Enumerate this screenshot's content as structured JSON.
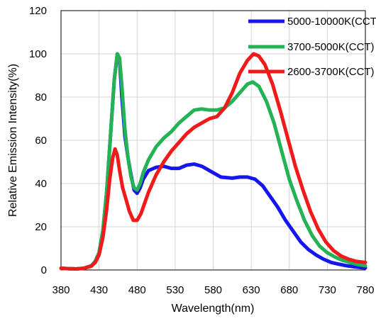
{
  "chart_data": {
    "type": "line",
    "title": "",
    "xlabel": "Wavelength(nm)",
    "ylabel": "Relative Emission Intensity(%)",
    "xlim": [
      380,
      780
    ],
    "ylim": [
      0,
      120
    ],
    "x_ticks": [
      380,
      430,
      480,
      530,
      580,
      630,
      680,
      730,
      780
    ],
    "y_ticks": [
      0,
      20,
      40,
      60,
      80,
      100,
      120
    ],
    "grid": true,
    "legend_position": "top-right",
    "colors": {
      "grid": "#d3d3d3",
      "axis": "#000000",
      "background": "#ffffff"
    },
    "series": [
      {
        "name": "5000-10000K(CCT)",
        "color": "#1515f0",
        "points": [
          [
            380,
            0.8
          ],
          [
            390,
            0.6
          ],
          [
            400,
            0.5
          ],
          [
            410,
            0.8
          ],
          [
            420,
            2
          ],
          [
            425,
            4
          ],
          [
            430,
            8
          ],
          [
            435,
            18
          ],
          [
            440,
            36
          ],
          [
            445,
            62
          ],
          [
            450,
            88
          ],
          [
            454,
            100
          ],
          [
            457,
            97
          ],
          [
            460,
            80
          ],
          [
            464,
            62
          ],
          [
            468,
            52
          ],
          [
            472,
            44
          ],
          [
            476,
            37
          ],
          [
            480,
            35.5
          ],
          [
            484,
            38
          ],
          [
            488,
            42
          ],
          [
            495,
            46
          ],
          [
            505,
            47.5
          ],
          [
            515,
            48
          ],
          [
            525,
            47
          ],
          [
            535,
            47
          ],
          [
            545,
            48.5
          ],
          [
            555,
            49
          ],
          [
            565,
            48
          ],
          [
            575,
            46
          ],
          [
            590,
            43
          ],
          [
            605,
            42.5
          ],
          [
            615,
            43
          ],
          [
            625,
            43
          ],
          [
            635,
            42
          ],
          [
            645,
            39
          ],
          [
            655,
            34
          ],
          [
            665,
            29
          ],
          [
            675,
            23
          ],
          [
            685,
            18
          ],
          [
            695,
            13
          ],
          [
            705,
            9.5
          ],
          [
            715,
            7
          ],
          [
            725,
            5
          ],
          [
            735,
            3.5
          ],
          [
            745,
            2.7
          ],
          [
            755,
            2
          ],
          [
            765,
            1.5
          ],
          [
            775,
            1.1
          ],
          [
            780,
            1
          ]
        ]
      },
      {
        "name": "3700-5000K(CCT)",
        "color": "#23b354",
        "points": [
          [
            380,
            0.8
          ],
          [
            390,
            0.6
          ],
          [
            400,
            0.5
          ],
          [
            410,
            0.8
          ],
          [
            420,
            2
          ],
          [
            425,
            4
          ],
          [
            430,
            8
          ],
          [
            435,
            18
          ],
          [
            440,
            36
          ],
          [
            445,
            62
          ],
          [
            450,
            88
          ],
          [
            454,
            100
          ],
          [
            457,
            98
          ],
          [
            460,
            85
          ],
          [
            464,
            65
          ],
          [
            468,
            52
          ],
          [
            472,
            43
          ],
          [
            476,
            38
          ],
          [
            480,
            37
          ],
          [
            484,
            40
          ],
          [
            488,
            45
          ],
          [
            495,
            51
          ],
          [
            505,
            57
          ],
          [
            515,
            61
          ],
          [
            525,
            64
          ],
          [
            535,
            68
          ],
          [
            545,
            71
          ],
          [
            555,
            74
          ],
          [
            565,
            74.5
          ],
          [
            575,
            74
          ],
          [
            585,
            74
          ],
          [
            595,
            75
          ],
          [
            605,
            78
          ],
          [
            615,
            82
          ],
          [
            625,
            86
          ],
          [
            632,
            87
          ],
          [
            640,
            85
          ],
          [
            650,
            78
          ],
          [
            660,
            68
          ],
          [
            670,
            55
          ],
          [
            680,
            42
          ],
          [
            690,
            32
          ],
          [
            700,
            23
          ],
          [
            710,
            16
          ],
          [
            720,
            11
          ],
          [
            730,
            8
          ],
          [
            740,
            6
          ],
          [
            750,
            4.5
          ],
          [
            760,
            3.5
          ],
          [
            770,
            2.5
          ],
          [
            780,
            2
          ]
        ]
      },
      {
        "name": "2600-3700K(CCT)",
        "color": "#f01a1a",
        "points": [
          [
            380,
            0.8
          ],
          [
            390,
            0.6
          ],
          [
            400,
            0.5
          ],
          [
            410,
            0.8
          ],
          [
            420,
            1.8
          ],
          [
            425,
            3.5
          ],
          [
            430,
            7
          ],
          [
            435,
            15
          ],
          [
            440,
            28
          ],
          [
            444,
            42
          ],
          [
            448,
            52
          ],
          [
            451,
            56
          ],
          [
            454,
            53
          ],
          [
            457,
            46
          ],
          [
            461,
            38
          ],
          [
            466,
            32
          ],
          [
            470,
            27
          ],
          [
            475,
            23
          ],
          [
            480,
            23
          ],
          [
            485,
            26
          ],
          [
            490,
            31
          ],
          [
            495,
            36
          ],
          [
            505,
            44
          ],
          [
            515,
            50
          ],
          [
            525,
            55
          ],
          [
            535,
            59
          ],
          [
            545,
            63
          ],
          [
            555,
            66
          ],
          [
            565,
            68
          ],
          [
            575,
            70
          ],
          [
            585,
            71
          ],
          [
            595,
            75
          ],
          [
            605,
            82
          ],
          [
            615,
            91
          ],
          [
            625,
            97
          ],
          [
            633,
            100
          ],
          [
            640,
            99
          ],
          [
            648,
            95
          ],
          [
            658,
            86
          ],
          [
            668,
            74
          ],
          [
            678,
            61
          ],
          [
            688,
            48
          ],
          [
            698,
            37
          ],
          [
            708,
            27
          ],
          [
            718,
            19
          ],
          [
            728,
            13
          ],
          [
            738,
            9
          ],
          [
            748,
            6.5
          ],
          [
            758,
            5
          ],
          [
            768,
            4
          ],
          [
            780,
            3.5
          ]
        ]
      }
    ]
  }
}
